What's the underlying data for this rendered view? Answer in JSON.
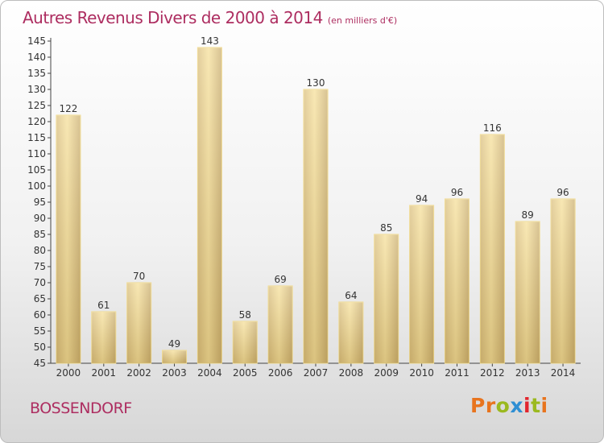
{
  "chart_data": {
    "type": "bar",
    "title": "Autres Revenus Divers de 2000 à 2014",
    "subtitle": "(en milliers d'€)",
    "categories": [
      "2000",
      "2001",
      "2002",
      "2003",
      "2004",
      "2005",
      "2006",
      "2007",
      "2008",
      "2009",
      "2010",
      "2011",
      "2012",
      "2013",
      "2014"
    ],
    "values": [
      122,
      61,
      70,
      49,
      143,
      58,
      69,
      130,
      64,
      85,
      94,
      96,
      116,
      89,
      96
    ],
    "ylim": [
      45,
      145
    ],
    "yticks": [
      45,
      50,
      55,
      60,
      65,
      70,
      75,
      80,
      85,
      90,
      95,
      100,
      105,
      110,
      115,
      120,
      125,
      130,
      135,
      140,
      145
    ],
    "grid": false,
    "colors": {
      "bar_light": "#f7e3a0",
      "bar_dark": "#d4b877",
      "bar_edge": "#f0d98a",
      "text": "#ad2d60"
    }
  },
  "footer": {
    "commune": "BOSSENDORF",
    "brand": [
      "P",
      "r",
      "o",
      "x",
      "i",
      "t",
      "i"
    ],
    "brand_colors": [
      "#e8741e",
      "#e8741e",
      "#9bb91f",
      "#2f8fd3",
      "#e2262e",
      "#9bb91f",
      "#e8741e"
    ]
  }
}
